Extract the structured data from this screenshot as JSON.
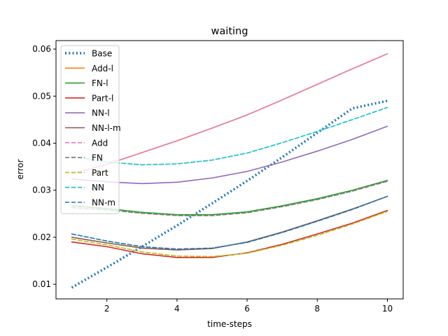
{
  "chart_data": {
    "type": "line",
    "title": "waiting",
    "xlabel": "time-steps",
    "ylabel": "error",
    "xlim": [
      0.55,
      10.45
    ],
    "ylim": [
      0.0069,
      0.0618
    ],
    "xticks": [
      2,
      4,
      6,
      8,
      10
    ],
    "yticks": [
      0.01,
      0.02,
      0.03,
      0.04,
      0.05,
      0.06
    ],
    "ytick_labels": [
      "0.01",
      "0.02",
      "0.03",
      "0.04",
      "0.05",
      "0.06"
    ],
    "grid": false,
    "legend_position": "upper-left",
    "x": [
      1,
      2,
      3,
      4,
      5,
      6,
      7,
      8,
      9,
      10
    ],
    "series": [
      {
        "name": "Base",
        "color": "#1f77b4",
        "style": "dotted",
        "values": [
          0.0093,
          0.0136,
          0.018,
          0.0225,
          0.0272,
          0.032,
          0.037,
          0.0422,
          0.0474,
          0.049
        ]
      },
      {
        "name": "Add-l",
        "color": "#ff7f0e",
        "style": "solid",
        "values": [
          0.0335,
          0.0355,
          0.038,
          0.0405,
          0.0432,
          0.046,
          0.0492,
          0.0525,
          0.0558,
          0.059
        ]
      },
      {
        "name": "FN-l",
        "color": "#2ca02c",
        "style": "solid",
        "values": [
          0.0267,
          0.0261,
          0.0253,
          0.0248,
          0.0248,
          0.0254,
          0.0267,
          0.0282,
          0.03,
          0.0321
        ]
      },
      {
        "name": "Part-l",
        "color": "#d62728",
        "style": "solid",
        "values": [
          0.019,
          0.018,
          0.0165,
          0.0157,
          0.0157,
          0.0167,
          0.0185,
          0.0207,
          0.023,
          0.0257
        ]
      },
      {
        "name": "NN-l",
        "color": "#9467bd",
        "style": "solid",
        "values": [
          0.0324,
          0.0318,
          0.0314,
          0.0317,
          0.0326,
          0.034,
          0.036,
          0.0383,
          0.0408,
          0.0436
        ]
      },
      {
        "name": "NN-l-m",
        "color": "#8c564b",
        "style": "solid",
        "values": [
          0.02,
          0.0188,
          0.0177,
          0.0173,
          0.0176,
          0.019,
          0.0211,
          0.0235,
          0.026,
          0.0287
        ]
      },
      {
        "name": "Add",
        "color": "#e377c2",
        "style": "dashed",
        "values": [
          0.0335,
          0.0355,
          0.038,
          0.0405,
          0.0432,
          0.046,
          0.0492,
          0.0525,
          0.0558,
          0.059
        ]
      },
      {
        "name": "FN",
        "color": "#7f7f7f",
        "style": "dashed",
        "values": [
          0.0263,
          0.0258,
          0.0251,
          0.0246,
          0.0246,
          0.0252,
          0.0265,
          0.028,
          0.0298,
          0.0319
        ]
      },
      {
        "name": "Part",
        "color": "#bcbd22",
        "style": "dashed",
        "values": [
          0.0196,
          0.0184,
          0.0169,
          0.016,
          0.0159,
          0.0166,
          0.0183,
          0.0204,
          0.0228,
          0.0255
        ]
      },
      {
        "name": "NN",
        "color": "#17becf",
        "style": "dashed",
        "values": [
          0.0372,
          0.036,
          0.0354,
          0.0356,
          0.0364,
          0.0379,
          0.0401,
          0.0425,
          0.045,
          0.0476
        ]
      },
      {
        "name": "NN-m",
        "color": "#1f77b4",
        "style": "dashed",
        "values": [
          0.0207,
          0.0192,
          0.018,
          0.0175,
          0.0177,
          0.0189,
          0.021,
          0.0234,
          0.0259,
          0.0287
        ]
      }
    ]
  }
}
